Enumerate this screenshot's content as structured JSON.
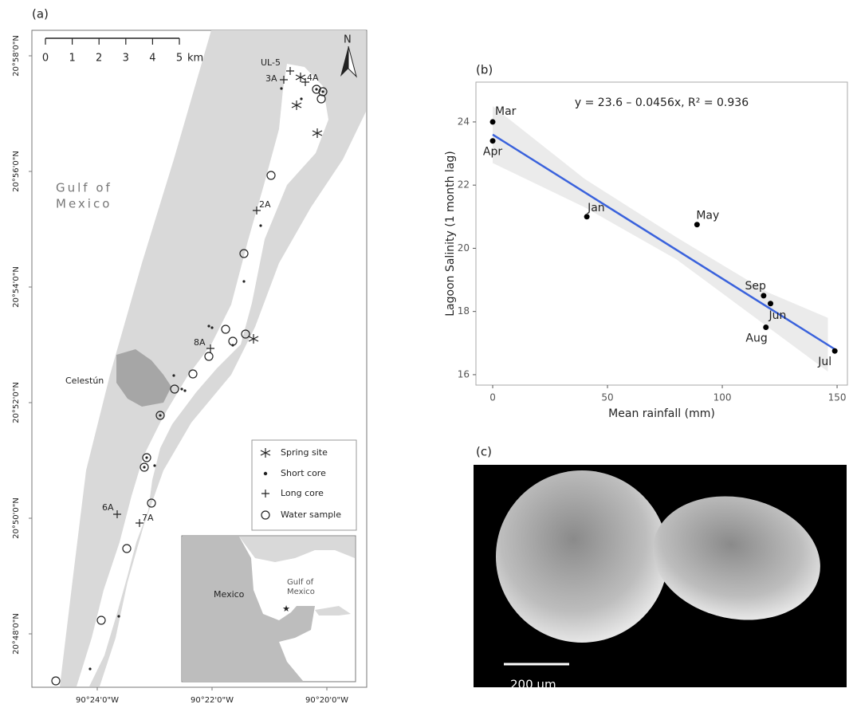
{
  "map": {
    "panel_label": "(a)",
    "scale": {
      "ticks": [
        0,
        1,
        2,
        3,
        4,
        5
      ],
      "unit": "km"
    },
    "north": "N",
    "lat_labels": [
      "20°58'0\"N",
      "20°56'0\"N",
      "20°54'0\"N",
      "20°52'0\"N",
      "20°50'0\"N",
      "20°48'0\"N"
    ],
    "lon_labels": [
      "90°24'0\"W",
      "90°22'0\"W",
      "90°20'0\"W"
    ],
    "sea_label": [
      "Gulf of",
      "Mexico"
    ],
    "town": "Celestún",
    "sites": [
      "UL-5",
      "3A",
      "4A",
      "2A",
      "8A",
      "6A",
      "7A"
    ],
    "legend": [
      "Spring site",
      "Short core",
      "Long core",
      "Water sample"
    ],
    "inset": {
      "country": "Mexico",
      "sea": [
        "Gulf of",
        "Mexico"
      ]
    }
  },
  "chart_data": {
    "type": "scatter",
    "panel_label": "(b)",
    "annotation": "y = 23.6 – 0.0456x,   R² = 0.936",
    "fit": {
      "intercept": 23.6,
      "slope": -0.0456,
      "color": "#3a62dc"
    },
    "band": {
      "x": [
        0,
        40,
        80,
        120,
        146
      ],
      "lower": [
        22.7,
        21.3,
        19.65,
        17.5,
        16.1
      ],
      "upper": [
        24.5,
        22.2,
        20.35,
        18.6,
        17.8
      ],
      "color": "#ebebeb"
    },
    "categories": [
      "Mar",
      "Apr",
      "Jan",
      "May",
      "Sep",
      "Jun",
      "Aug",
      "Jul"
    ],
    "x": [
      0,
      0,
      41,
      89,
      118,
      121,
      119,
      149
    ],
    "values": [
      24.0,
      23.4,
      21.0,
      20.75,
      18.5,
      18.25,
      17.5,
      16.75
    ],
    "color": "#000000",
    "xlabel": "Mean rainfall (mm)",
    "ylabel": "Lagoon Salinity (1 month lag)",
    "xlim": [
      -7.3,
      154.5
    ],
    "ylim": [
      15.67,
      25.26
    ],
    "xticks": [
      0,
      50,
      100,
      150
    ],
    "yticks": [
      16,
      18,
      20,
      22,
      24
    ],
    "grid": false
  },
  "photo": {
    "panel_label": "(c)",
    "scale_bar": "200 µm"
  }
}
